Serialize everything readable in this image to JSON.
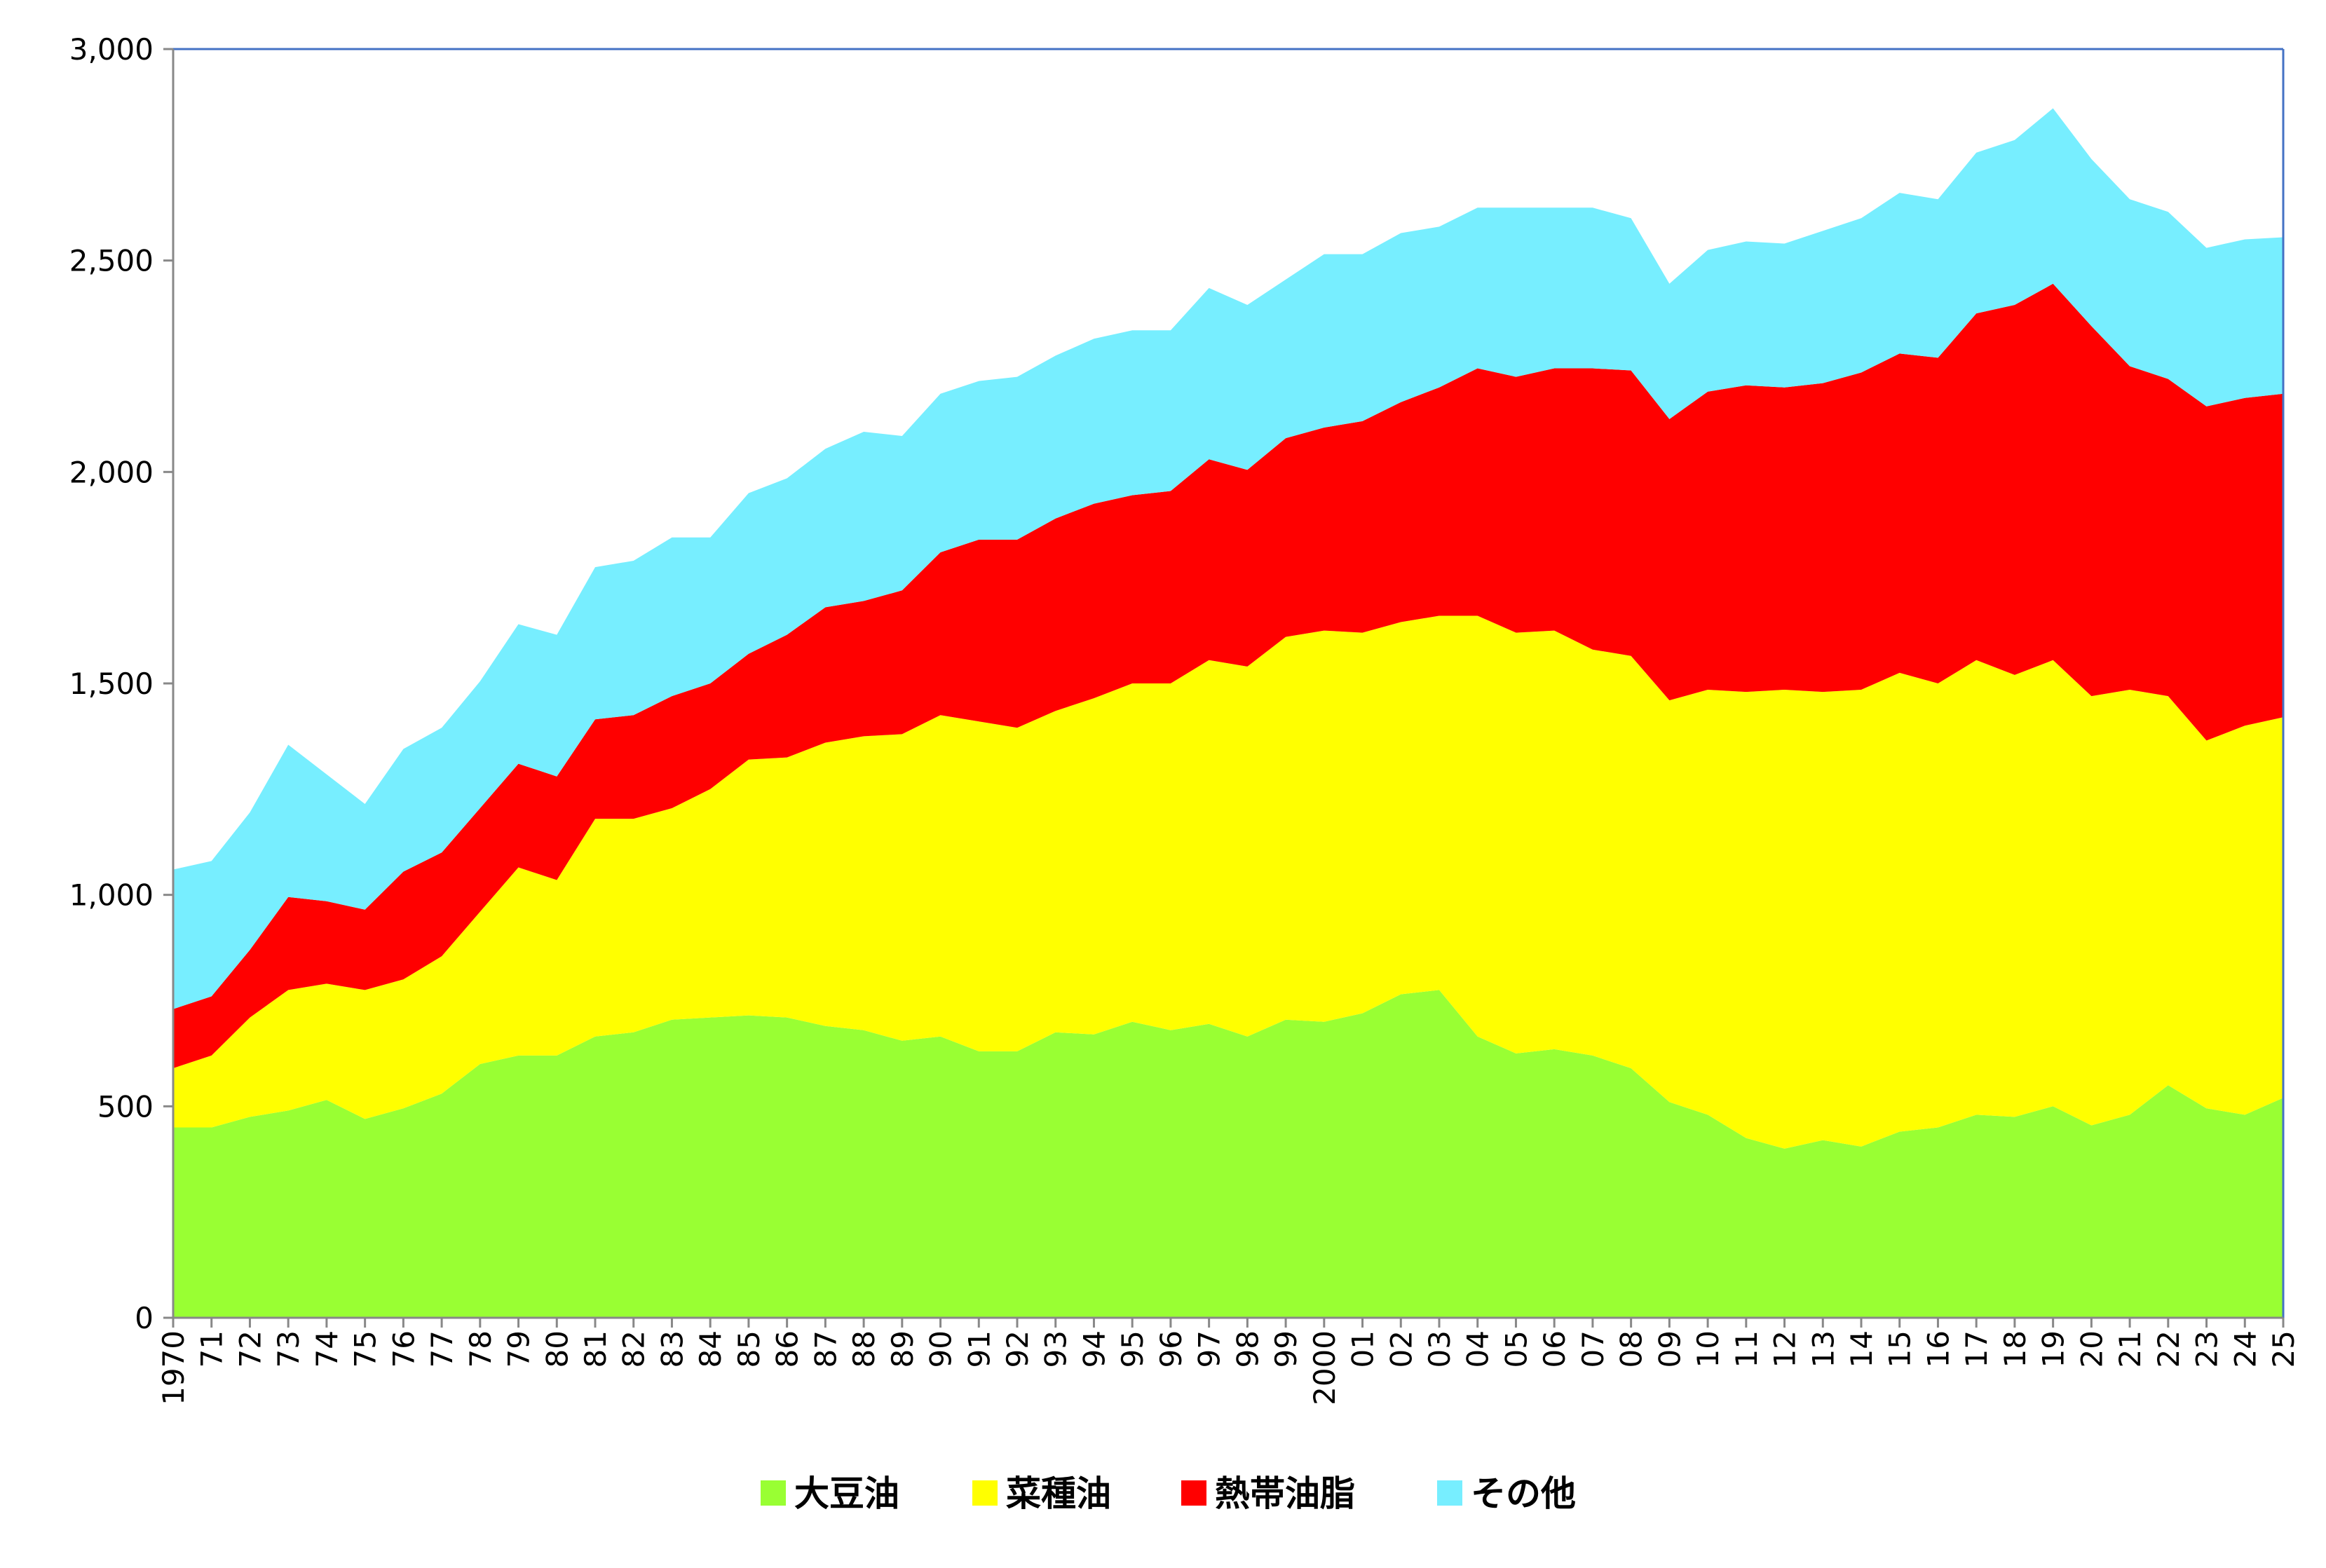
{
  "chart_data": {
    "type": "area",
    "stacked": true,
    "title": "",
    "xlabel": "",
    "ylabel": "",
    "ylim": [
      0,
      3000
    ],
    "y_ticks": [
      0,
      500,
      1000,
      1500,
      2000,
      2500,
      3000
    ],
    "y_tick_labels": [
      "0",
      "500",
      "1,000",
      "1,500",
      "2,000",
      "2,500",
      "3,000"
    ],
    "grid": false,
    "legend_position": "bottom",
    "x_tick_labels": [
      "1970",
      "71",
      "72",
      "73",
      "74",
      "75",
      "76",
      "77",
      "78",
      "79",
      "80",
      "81",
      "82",
      "83",
      "84",
      "85",
      "86",
      "87",
      "88",
      "89",
      "90",
      "91",
      "92",
      "93",
      "94",
      "95",
      "96",
      "97",
      "98",
      "99",
      "2000",
      "01",
      "02",
      "03",
      "04",
      "05",
      "06",
      "07",
      "08",
      "09",
      "10",
      "11",
      "12",
      "13",
      "14",
      "15",
      "16",
      "17",
      "18",
      "19",
      "20",
      "21",
      "22",
      "23",
      "24",
      "25"
    ],
    "series": [
      {
        "name": "大豆油",
        "color": "#99ff33",
        "cumulative": [
          450,
          450,
          475,
          490,
          515,
          470,
          495,
          530,
          600,
          620,
          620,
          665,
          675,
          705,
          710,
          715,
          710,
          690,
          680,
          655,
          665,
          630,
          630,
          675,
          670,
          700,
          680,
          695,
          665,
          705,
          700,
          720,
          765,
          775,
          665,
          625,
          635,
          620,
          590,
          510,
          480,
          425,
          400,
          420,
          405,
          440,
          450,
          480,
          475,
          500,
          455,
          480,
          550,
          495,
          480,
          520
        ]
      },
      {
        "name": "菜種油",
        "color": "#ffff00",
        "cumulative": [
          590,
          620,
          710,
          775,
          790,
          775,
          800,
          855,
          960,
          1065,
          1035,
          1180,
          1180,
          1205,
          1250,
          1320,
          1325,
          1360,
          1375,
          1380,
          1425,
          1410,
          1395,
          1435,
          1465,
          1500,
          1500,
          1555,
          1540,
          1610,
          1625,
          1620,
          1645,
          1660,
          1660,
          1620,
          1625,
          1580,
          1565,
          1460,
          1485,
          1480,
          1485,
          1480,
          1485,
          1525,
          1500,
          1555,
          1520,
          1555,
          1470,
          1485,
          1470,
          1365,
          1400,
          1420
        ]
      },
      {
        "name": "熱帯油脂",
        "color": "#ff0000",
        "cumulative": [
          730,
          760,
          870,
          995,
          985,
          965,
          1055,
          1100,
          1205,
          1310,
          1280,
          1415,
          1425,
          1470,
          1500,
          1570,
          1615,
          1680,
          1695,
          1720,
          1810,
          1840,
          1840,
          1890,
          1925,
          1945,
          1955,
          2030,
          2005,
          2080,
          2105,
          2120,
          2165,
          2200,
          2245,
          2225,
          2245,
          2245,
          2240,
          2125,
          2190,
          2205,
          2200,
          2210,
          2235,
          2280,
          2270,
          2375,
          2395,
          2445,
          2345,
          2250,
          2220,
          2155,
          2175,
          2185
        ]
      },
      {
        "name": "その他",
        "color": "#77eeff",
        "cumulative": [
          1060,
          1080,
          1195,
          1355,
          1285,
          1215,
          1345,
          1395,
          1505,
          1640,
          1615,
          1775,
          1790,
          1845,
          1845,
          1950,
          1985,
          2055,
          2095,
          2085,
          2185,
          2215,
          2225,
          2275,
          2315,
          2335,
          2335,
          2435,
          2395,
          2455,
          2515,
          2515,
          2565,
          2580,
          2625,
          2625,
          2625,
          2625,
          2600,
          2445,
          2525,
          2545,
          2540,
          2570,
          2600,
          2660,
          2645,
          2755,
          2785,
          2860,
          2740,
          2645,
          2615,
          2530,
          2550,
          2555
        ]
      }
    ]
  }
}
